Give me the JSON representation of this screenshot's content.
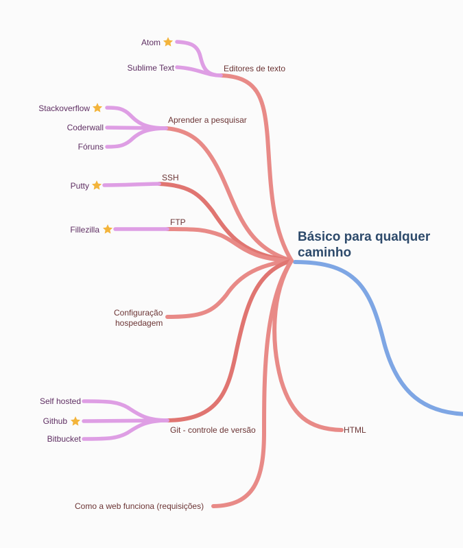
{
  "central": {
    "line1": "Básico para qualquer",
    "line2": "caminho"
  },
  "colors": {
    "branch": "#e88a87",
    "branch_dark": "#e07571",
    "leaf": "#de9ee4",
    "parent": "#7ea6e4",
    "star": "#f3b43b"
  },
  "nodes": {
    "editores": "Editores de texto",
    "atom": "Atom",
    "sublime": "Sublime Text",
    "pesquisar": "Aprender a pesquisar",
    "stackoverflow": "Stackoverflow",
    "coderwall": "Coderwall",
    "foruns": "Fóruns",
    "ssh": "SSH",
    "putty": "Putty",
    "ftp": "FTP",
    "fillezilla": "Fillezilla",
    "config_l1": "Configuração",
    "config_l2": "hospedagem",
    "git": "Git - controle de versão",
    "selfhosted": "Self hosted",
    "github": "Github",
    "bitbucket": "Bitbucket",
    "html": "HTML",
    "web": "Como a web funciona (requisições)"
  },
  "stars": [
    "star-atom",
    "star-stackoverflow",
    "star-putty",
    "star-fillezilla",
    "star-github"
  ]
}
